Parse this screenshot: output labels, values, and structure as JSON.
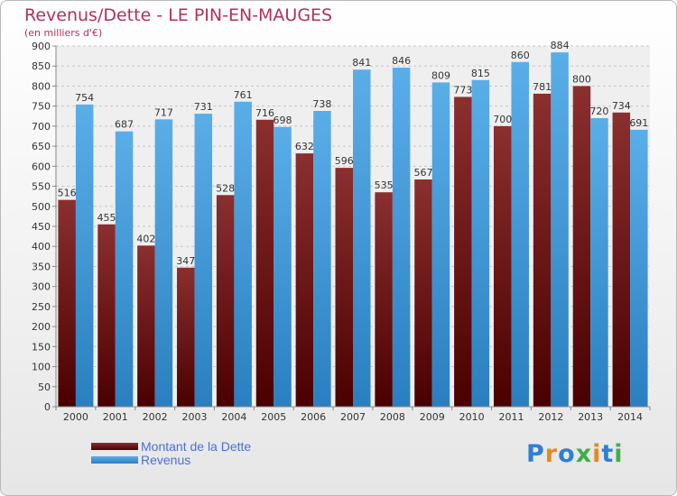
{
  "title": "Revenus/Dette - LE PIN-EN-MAUGES",
  "subtitle": "(en milliers d'€)",
  "legend": {
    "debt_label": "Montant de la Dette",
    "revenue_label": "Revenus"
  },
  "logo": {
    "text": "Proxiti"
  },
  "colors": {
    "debt_top": "#8b2f2f",
    "debt_bottom": "#4a0000",
    "revenue_top": "#5aaee8",
    "revenue_bottom": "#2a7fc0",
    "title": "#b03060",
    "legend_text": "#4b6fd6"
  },
  "chart_data": {
    "type": "bar",
    "categories": [
      "2000",
      "2001",
      "2002",
      "2003",
      "2004",
      "2005",
      "2006",
      "2007",
      "2008",
      "2009",
      "2010",
      "2011",
      "2012",
      "2013",
      "2014"
    ],
    "series": [
      {
        "name": "Montant de la Dette",
        "values": [
          516,
          455,
          402,
          347,
          528,
          716,
          632,
          596,
          535,
          567,
          773,
          700,
          781,
          800,
          734
        ]
      },
      {
        "name": "Revenus",
        "values": [
          754,
          687,
          717,
          731,
          761,
          698,
          738,
          841,
          846,
          809,
          815,
          860,
          884,
          720,
          691
        ]
      }
    ],
    "yticks": [
      "0",
      "50",
      "100",
      "150",
      "200",
      "250",
      "300",
      "350",
      "400",
      "450",
      "500",
      "550",
      "600",
      "650",
      "700",
      "750",
      "800",
      "850",
      "900"
    ],
    "ylim": [
      0,
      900
    ],
    "grid": true,
    "legend_position": "bottom-left"
  }
}
